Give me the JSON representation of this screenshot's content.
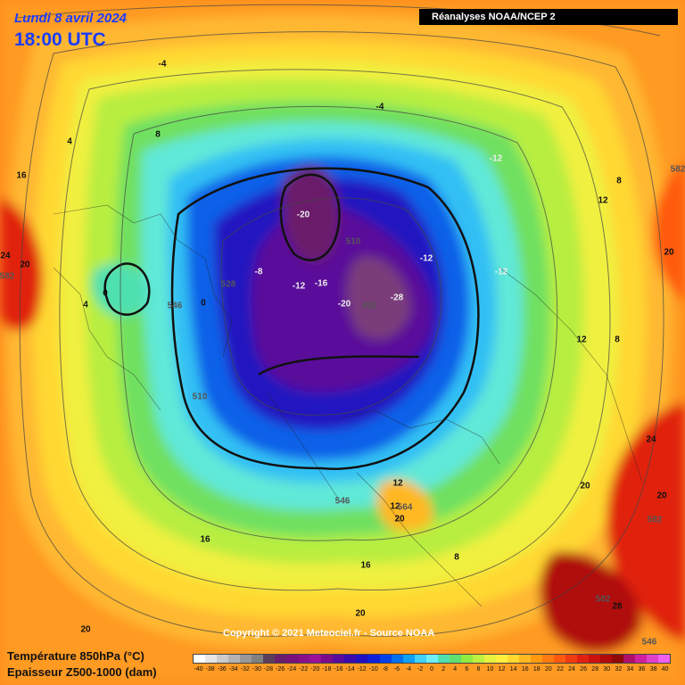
{
  "header": {
    "date": "Lundi 8 avril 2024",
    "time": "18:00 UTC",
    "source": "Réanalyses NOAA/NCEP 2"
  },
  "footer": {
    "copyright": "Copyright © 2021 Meteociel.fr - Source NOAA",
    "legend_temperature": "Température 850hPa (°C)",
    "legend_thickness": "Epaisseur Z500-1000 (dam)"
  },
  "scale": {
    "ticks": [
      "-40",
      "-38",
      "-36",
      "-34",
      "-32",
      "-30",
      "-28",
      "-26",
      "-24",
      "-22",
      "-20",
      "-18",
      "-16",
      "-14",
      "-12",
      "-10",
      "-8",
      "-6",
      "-4",
      "-2",
      "0",
      "2",
      "4",
      "6",
      "8",
      "10",
      "12",
      "14",
      "16",
      "18",
      "20",
      "22",
      "24",
      "26",
      "28",
      "30",
      "32",
      "34",
      "36",
      "38",
      "40"
    ],
    "colors": [
      "#ffffff",
      "#e6e6e6",
      "#cccccc",
      "#b3b3b3",
      "#999999",
      "#808080",
      "#5a3d5a",
      "#6a1d6a",
      "#7a107a",
      "#8a108a",
      "#9a109a",
      "#7a0c8a",
      "#5a0a9a",
      "#3a0aaa",
      "#2010c0",
      "#1020d8",
      "#0040e8",
      "#0070ee",
      "#10a0f4",
      "#40d0f8",
      "#70eef8",
      "#50e0b0",
      "#60e070",
      "#90ec40",
      "#c0f040",
      "#e8f040",
      "#fff040",
      "#ffd830",
      "#ffb820",
      "#ff9a10",
      "#ff7a10",
      "#ff5a10",
      "#f03a10",
      "#e02010",
      "#cc1010",
      "#b00a0a",
      "#900808",
      "#b0106a",
      "#d020a0",
      "#e040c8",
      "#f060f0"
    ]
  },
  "map_labels": {
    "temperature": [
      "-4",
      "-4",
      "-12",
      "-12",
      "-12",
      "-20",
      "-12",
      "-16",
      "-20",
      "-28",
      "-8",
      "0",
      "0",
      "4",
      "4",
      "8",
      "8",
      "12",
      "12",
      "12",
      "8",
      "8",
      "16",
      "20",
      "20",
      "24",
      "20",
      "20",
      "24",
      "28",
      "16",
      "12",
      "20",
      "20",
      "20",
      "16"
    ],
    "thickness": [
      "510",
      "492",
      "510",
      "528",
      "546",
      "546",
      "582",
      "582",
      "582",
      "582",
      "564",
      "546"
    ]
  }
}
